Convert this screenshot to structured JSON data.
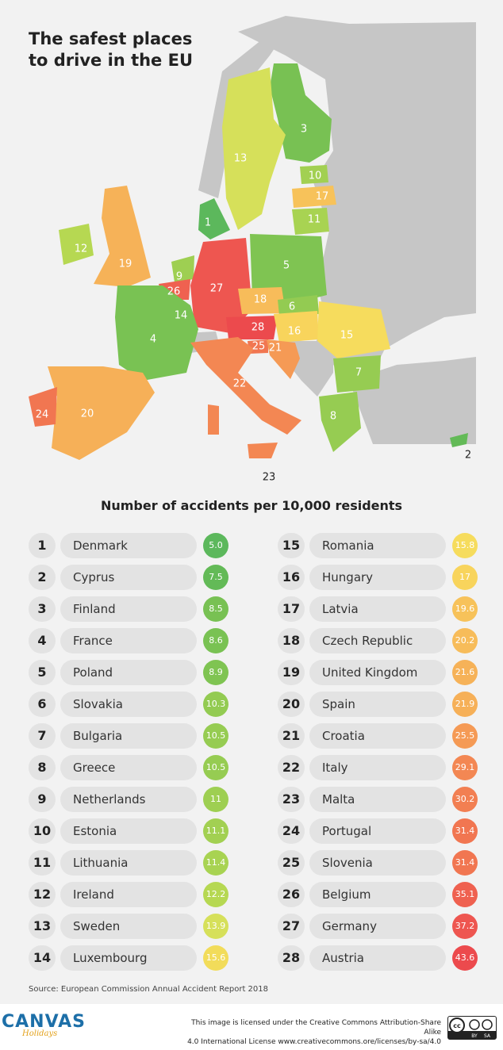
{
  "title_line1": "The safest places",
  "title_line2": "to drive in the EU",
  "subtitle": "Number of accidents per 10,000 residents",
  "source": "Source: European Commission Annual Accident Report 2018",
  "logo": {
    "main": "CANVAS",
    "sub": "Holidays"
  },
  "license_line1": "This image is licensed under the Creative Commons Attribution-Share Alike",
  "license_line2": "4.0 International License www.creativecommons.ore/licenses/by-sa/4.0",
  "cc_badge": {
    "by": "BY",
    "sa": "SA"
  },
  "map_labels": {
    "denmark": "1",
    "cyprus": "2",
    "finland": "3",
    "france": "4",
    "poland": "5",
    "slovakia": "6",
    "bulgaria": "7",
    "greece": "8",
    "netherlands": "9",
    "estonia": "10",
    "lithuania": "11",
    "ireland": "12",
    "sweden": "13",
    "luxembourg": "14",
    "romania": "15",
    "hungary": "16",
    "latvia": "17",
    "czech": "18",
    "uk": "19",
    "spain": "20",
    "croatia": "21",
    "italy": "22",
    "malta": "23",
    "portugal": "24",
    "slovenia": "25",
    "belgium": "26",
    "germany": "27",
    "austria": "28"
  },
  "rankings": [
    {
      "rank": "1",
      "country": "Denmark",
      "value": "5.0",
      "color": "#5cb85c"
    },
    {
      "rank": "2",
      "country": "Cyprus",
      "value": "7.5",
      "color": "#63ba57"
    },
    {
      "rank": "3",
      "country": "Finland",
      "value": "8.5",
      "color": "#78c153"
    },
    {
      "rank": "4",
      "country": "France",
      "value": "8.6",
      "color": "#79c253"
    },
    {
      "rank": "5",
      "country": "Poland",
      "value": "8.9",
      "color": "#7fc452"
    },
    {
      "rank": "6",
      "country": "Slovakia",
      "value": "10.3",
      "color": "#93cb52"
    },
    {
      "rank": "7",
      "country": "Bulgaria",
      "value": "10.5",
      "color": "#96cc52"
    },
    {
      "rank": "8",
      "country": "Greece",
      "value": "10.5",
      "color": "#96cc52"
    },
    {
      "rank": "9",
      "country": "Netherlands",
      "value": "11",
      "color": "#9ecf52"
    },
    {
      "rank": "10",
      "country": "Estonia",
      "value": "11.1",
      "color": "#a2d052"
    },
    {
      "rank": "11",
      "country": "Lithuania",
      "value": "11.4",
      "color": "#a8d352"
    },
    {
      "rank": "12",
      "country": "Ireland",
      "value": "12.2",
      "color": "#b6d852"
    },
    {
      "rank": "13",
      "country": "Sweden",
      "value": "13.9",
      "color": "#d6e05a"
    },
    {
      "rank": "14",
      "country": "Luxembourg",
      "value": "15.6",
      "color": "#f2dc5a"
    },
    {
      "rank": "15",
      "country": "Romania",
      "value": "15.8",
      "color": "#f6dc5d"
    },
    {
      "rank": "16",
      "country": "Hungary",
      "value": "17",
      "color": "#f8d45c"
    },
    {
      "rank": "17",
      "country": "Latvia",
      "value": "19.6",
      "color": "#f7c25a"
    },
    {
      "rank": "18",
      "country": "Czech Republic",
      "value": "20.2",
      "color": "#f7bc5a"
    },
    {
      "rank": "19",
      "country": "United Kingdom",
      "value": "21.6",
      "color": "#f6b258"
    },
    {
      "rank": "20",
      "country": "Spain",
      "value": "21.9",
      "color": "#f6b058"
    },
    {
      "rank": "21",
      "country": "Croatia",
      "value": "25.5",
      "color": "#f59a55"
    },
    {
      "rank": "22",
      "country": "Italy",
      "value": "29.1",
      "color": "#f38753"
    },
    {
      "rank": "23",
      "country": "Malta",
      "value": "30.2",
      "color": "#f27f52"
    },
    {
      "rank": "24",
      "country": "Portugal",
      "value": "31.4",
      "color": "#f17651"
    },
    {
      "rank": "25",
      "country": "Slovenia",
      "value": "31.4",
      "color": "#f17651"
    },
    {
      "rank": "26",
      "country": "Belgium",
      "value": "35.1",
      "color": "#ef6150"
    },
    {
      "rank": "27",
      "country": "Germany",
      "value": "37.2",
      "color": "#ee5650"
    },
    {
      "rank": "28",
      "country": "Austria",
      "value": "43.6",
      "color": "#ec4a4d"
    }
  ]
}
